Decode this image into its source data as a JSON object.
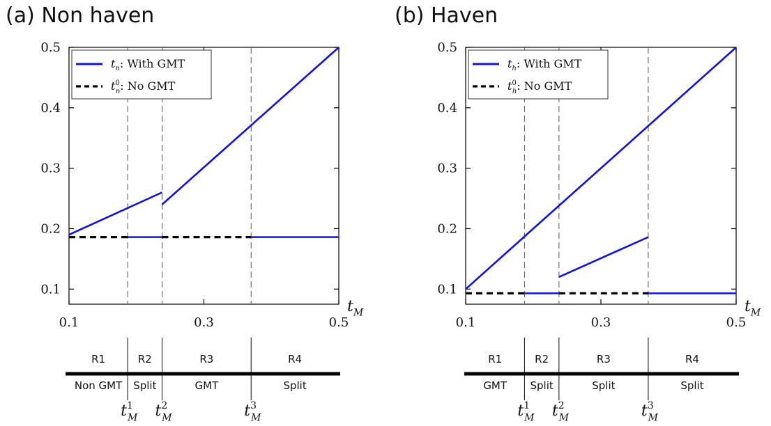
{
  "colors": {
    "with_gmt": "#1010e8",
    "no_gmt": "#000000",
    "axis": "#000000",
    "dash": "#555555"
  },
  "chart_data": [
    {
      "panel_id": "a",
      "title": "(a)  Non haven",
      "type": "line",
      "xlim": [
        0.1,
        0.5
      ],
      "ylim": [
        0.075,
        0.5
      ],
      "xticks": [
        0.1,
        0.3,
        0.5
      ],
      "yticks": [
        0.1,
        0.2,
        0.3,
        0.4,
        0.5
      ],
      "xtick_labels": [
        "0.1",
        "0.3",
        "0.5"
      ],
      "ytick_labels": [
        "0.1",
        "0.2",
        "0.3",
        "0.4",
        "0.5"
      ],
      "xlabel": {
        "var": "t",
        "sub": "M"
      },
      "thresholds": [
        0.187,
        0.238,
        0.37
      ],
      "legend": [
        {
          "style": "solid",
          "var": "t",
          "sub": "n",
          "sup": "",
          "text": ": With GMT"
        },
        {
          "style": "dashed",
          "var": "t",
          "sub": "n",
          "sup": "0",
          "text": ": No GMT"
        }
      ],
      "series": [
        {
          "style": "solid",
          "segments": [
            [
              [
                0.1,
                0.19
              ],
              [
                0.238,
                0.26
              ]
            ],
            [
              [
                0.238,
                0.24
              ],
              [
                0.5,
                0.5
              ]
            ],
            [
              [
                0.187,
                0.186
              ],
              [
                0.238,
                0.186
              ]
            ],
            [
              [
                0.37,
                0.186
              ],
              [
                0.5,
                0.186
              ]
            ]
          ]
        },
        {
          "style": "dashed",
          "segments": [
            [
              [
                0.1,
                0.186
              ],
              [
                0.187,
                0.186
              ]
            ],
            [
              [
                0.238,
                0.186
              ],
              [
                0.37,
                0.186
              ]
            ]
          ]
        }
      ],
      "regions": [
        {
          "name": "R1",
          "label": "Non GMT"
        },
        {
          "name": "R2",
          "label": "Split"
        },
        {
          "name": "R3",
          "label": "GMT"
        },
        {
          "name": "R4",
          "label": "Split"
        }
      ],
      "threshold_labels": [
        {
          "var": "t",
          "sub": "M",
          "sup": "1"
        },
        {
          "var": "t",
          "sub": "M",
          "sup": "2"
        },
        {
          "var": "t",
          "sub": "M",
          "sup": "3"
        }
      ]
    },
    {
      "panel_id": "b",
      "title": "(b)  Haven",
      "type": "line",
      "xlim": [
        0.1,
        0.5
      ],
      "ylim": [
        0.075,
        0.5
      ],
      "xticks": [
        0.1,
        0.3,
        0.5
      ],
      "yticks": [
        0.1,
        0.2,
        0.3,
        0.4,
        0.5
      ],
      "xtick_labels": [
        "0.1",
        "0.3",
        "0.5"
      ],
      "ytick_labels": [
        "0.1",
        "0.2",
        "0.3",
        "0.4",
        "0.5"
      ],
      "xlabel": {
        "var": "t",
        "sub": "M"
      },
      "thresholds": [
        0.187,
        0.238,
        0.37
      ],
      "legend": [
        {
          "style": "solid",
          "var": "t",
          "sub": "h",
          "sup": "",
          "text": ": With GMT"
        },
        {
          "style": "dashed",
          "var": "t",
          "sub": "h",
          "sup": "0",
          "text": ": No GMT"
        }
      ],
      "series": [
        {
          "style": "solid",
          "segments": [
            [
              [
                0.1,
                0.1
              ],
              [
                0.5,
                0.5
              ]
            ],
            [
              [
                0.238,
                0.12
              ],
              [
                0.37,
                0.186
              ]
            ],
            [
              [
                0.187,
                0.093
              ],
              [
                0.238,
                0.093
              ]
            ],
            [
              [
                0.37,
                0.093
              ],
              [
                0.5,
                0.093
              ]
            ]
          ]
        },
        {
          "style": "dashed",
          "segments": [
            [
              [
                0.1,
                0.093
              ],
              [
                0.187,
                0.093
              ]
            ],
            [
              [
                0.238,
                0.093
              ],
              [
                0.37,
                0.093
              ]
            ]
          ]
        }
      ],
      "regions": [
        {
          "name": "R1",
          "label": "GMT"
        },
        {
          "name": "R2",
          "label": "Split"
        },
        {
          "name": "R3",
          "label": "Split"
        },
        {
          "name": "R4",
          "label": "Split"
        }
      ],
      "threshold_labels": [
        {
          "var": "t",
          "sub": "M",
          "sup": "1"
        },
        {
          "var": "t",
          "sub": "M",
          "sup": "2"
        },
        {
          "var": "t",
          "sub": "M",
          "sup": "3"
        }
      ]
    }
  ]
}
